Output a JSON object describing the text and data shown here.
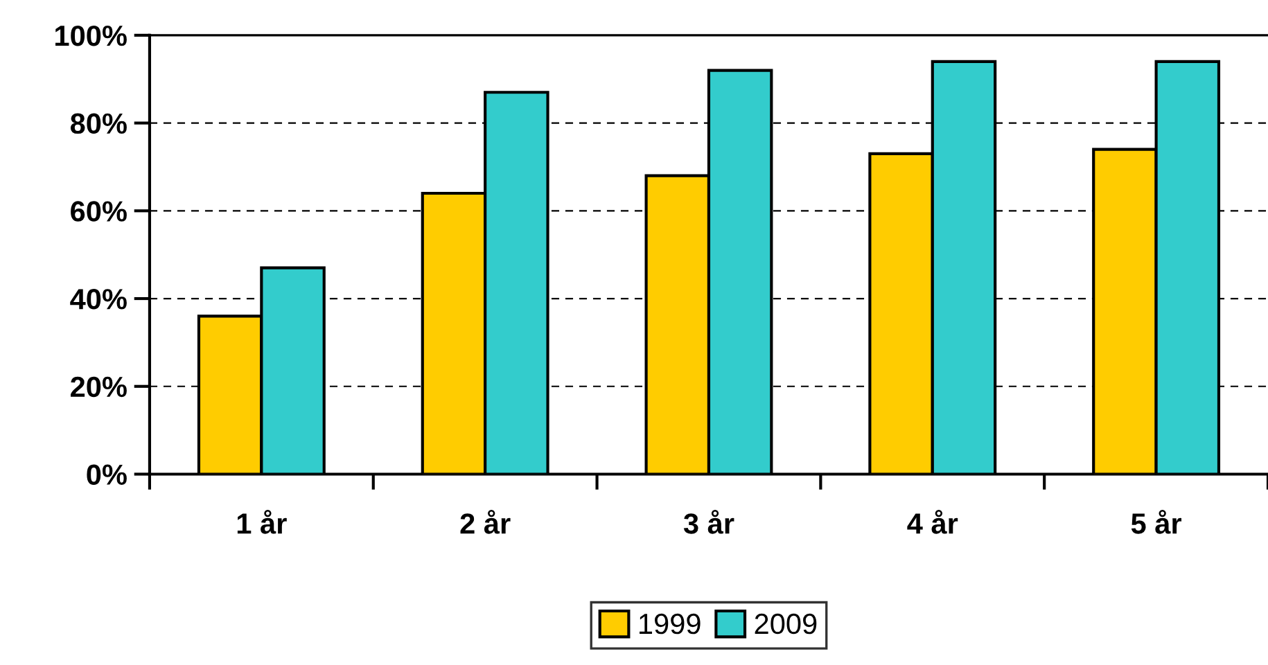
{
  "chart_data": {
    "type": "bar",
    "categories": [
      "1 år",
      "2 år",
      "3 år",
      "4 år",
      "5 år"
    ],
    "series": [
      {
        "name": "1999",
        "color": "#ffcc00",
        "values": [
          36,
          64,
          68,
          73,
          74
        ]
      },
      {
        "name": "2009",
        "color": "#33cccc",
        "values": [
          47,
          87,
          92,
          94,
          94
        ]
      }
    ],
    "ylim": [
      0,
      100
    ],
    "yticks": [
      {
        "value": 0,
        "label": "0%"
      },
      {
        "value": 20,
        "label": "20%"
      },
      {
        "value": 40,
        "label": "40%"
      },
      {
        "value": 60,
        "label": "60%"
      },
      {
        "value": 80,
        "label": "80%"
      },
      {
        "value": 100,
        "label": "100%"
      }
    ],
    "grid": "y",
    "line_style": "dashed",
    "legend": "bottom"
  }
}
